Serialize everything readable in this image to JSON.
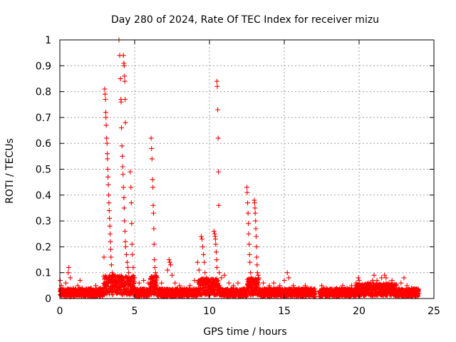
{
  "chart_data": {
    "type": "scatter",
    "title": "Day 280 of 2024, Rate Of TEC Index for receiver mizu",
    "xlabel": "GPS time / hours",
    "ylabel": "ROTI / TECUs",
    "xlim": [
      0,
      25
    ],
    "ylim": [
      0,
      1
    ],
    "x_ticks": [
      0,
      5,
      10,
      15,
      20,
      25
    ],
    "x_tick_labels": [
      "0",
      "5",
      "10",
      "15",
      "20",
      "25"
    ],
    "y_ticks": [
      0,
      0.1,
      0.2,
      0.3,
      0.4,
      0.5,
      0.6,
      0.7,
      0.8,
      0.9,
      1
    ],
    "y_tick_labels": [
      "0",
      "0.1",
      "0.2",
      "0.3",
      "0.4",
      "0.5",
      "0.6",
      "0.7",
      "0.8",
      "0.9",
      "1"
    ],
    "grid": true,
    "marker": "+",
    "color": "#ff0000",
    "series": [
      {
        "name": "ROTI",
        "points": [
          [
            0.02,
            0.07
          ],
          [
            0.1,
            0.05
          ],
          [
            0.25,
            0.03
          ],
          [
            0.4,
            0.06
          ],
          [
            0.55,
            0.1
          ],
          [
            0.6,
            0.12
          ],
          [
            0.7,
            0.08
          ],
          [
            0.9,
            0.04
          ],
          [
            1.2,
            0.05
          ],
          [
            1.35,
            0.07
          ],
          [
            1.5,
            0.04
          ],
          [
            1.8,
            0.03
          ],
          [
            2.1,
            0.04
          ],
          [
            2.4,
            0.05
          ],
          [
            2.7,
            0.04
          ],
          [
            2.95,
            0.16
          ],
          [
            3.0,
            0.81
          ],
          [
            3.02,
            0.79
          ],
          [
            3.05,
            0.77
          ],
          [
            3.07,
            0.72
          ],
          [
            3.08,
            0.7
          ],
          [
            3.1,
            0.67
          ],
          [
            3.12,
            0.62
          ],
          [
            3.15,
            0.6
          ],
          [
            3.17,
            0.56
          ],
          [
            3.18,
            0.54
          ],
          [
            3.2,
            0.5
          ],
          [
            3.22,
            0.47
          ],
          [
            3.24,
            0.44
          ],
          [
            3.26,
            0.4
          ],
          [
            3.28,
            0.37
          ],
          [
            3.3,
            0.34
          ],
          [
            3.32,
            0.31
          ],
          [
            3.34,
            0.28
          ],
          [
            3.36,
            0.25
          ],
          [
            3.38,
            0.22
          ],
          [
            3.4,
            0.19
          ],
          [
            3.42,
            0.16
          ],
          [
            3.45,
            0.13
          ],
          [
            3.5,
            0.1
          ],
          [
            3.55,
            0.09
          ],
          [
            3.7,
            0.07
          ],
          [
            3.95,
            1.0
          ],
          [
            4.0,
            0.94
          ],
          [
            4.05,
            0.85
          ],
          [
            4.08,
            0.77
          ],
          [
            4.1,
            0.76
          ],
          [
            4.12,
            0.66
          ],
          [
            4.15,
            0.59
          ],
          [
            4.18,
            0.55
          ],
          [
            4.2,
            0.51
          ],
          [
            4.22,
            0.48
          ],
          [
            4.25,
            0.43
          ],
          [
            4.28,
            0.39
          ],
          [
            4.3,
            0.35
          ],
          [
            4.32,
            0.3
          ],
          [
            4.35,
            0.26
          ],
          [
            4.38,
            0.22
          ],
          [
            4.25,
            0.94
          ],
          [
            4.28,
            0.91
          ],
          [
            4.3,
            0.9
          ],
          [
            4.32,
            0.86
          ],
          [
            4.34,
            0.84
          ],
          [
            4.36,
            0.77
          ],
          [
            4.38,
            0.68
          ],
          [
            4.4,
            0.2
          ],
          [
            4.45,
            0.17
          ],
          [
            4.5,
            0.14
          ],
          [
            4.55,
            0.12
          ],
          [
            4.6,
            0.1
          ],
          [
            4.7,
            0.49
          ],
          [
            4.75,
            0.43
          ],
          [
            4.78,
            0.37
          ],
          [
            4.8,
            0.29
          ],
          [
            4.82,
            0.21
          ],
          [
            4.85,
            0.17
          ],
          [
            4.9,
            0.12
          ],
          [
            5.0,
            0.08
          ],
          [
            5.3,
            0.06
          ],
          [
            5.6,
            0.07
          ],
          [
            5.9,
            0.06
          ],
          [
            6.1,
            0.62
          ],
          [
            6.13,
            0.58
          ],
          [
            6.16,
            0.54
          ],
          [
            6.2,
            0.46
          ],
          [
            6.22,
            0.43
          ],
          [
            6.24,
            0.36
          ],
          [
            6.26,
            0.33
          ],
          [
            6.28,
            0.27
          ],
          [
            6.3,
            0.21
          ],
          [
            6.32,
            0.15
          ],
          [
            6.35,
            0.12
          ],
          [
            6.4,
            0.1
          ],
          [
            6.5,
            0.08
          ],
          [
            6.8,
            0.06
          ],
          [
            7.2,
            0.11
          ],
          [
            7.3,
            0.15
          ],
          [
            7.35,
            0.14
          ],
          [
            7.4,
            0.13
          ],
          [
            7.5,
            0.09
          ],
          [
            7.7,
            0.06
          ],
          [
            8.0,
            0.05
          ],
          [
            8.3,
            0.04
          ],
          [
            8.7,
            0.05
          ],
          [
            9.0,
            0.07
          ],
          [
            9.2,
            0.14
          ],
          [
            9.3,
            0.11
          ],
          [
            9.45,
            0.24
          ],
          [
            9.5,
            0.23
          ],
          [
            9.55,
            0.2
          ],
          [
            9.6,
            0.17
          ],
          [
            9.65,
            0.14
          ],
          [
            9.7,
            0.1
          ],
          [
            9.8,
            0.08
          ],
          [
            9.9,
            0.06
          ],
          [
            10.3,
            0.26
          ],
          [
            10.35,
            0.25
          ],
          [
            10.38,
            0.24
          ],
          [
            10.4,
            0.23
          ],
          [
            10.42,
            0.21
          ],
          [
            10.45,
            0.18
          ],
          [
            10.48,
            0.15
          ],
          [
            10.5,
            0.12
          ],
          [
            10.5,
            0.84
          ],
          [
            10.52,
            0.82
          ],
          [
            10.55,
            0.73
          ],
          [
            10.58,
            0.62
          ],
          [
            10.6,
            0.49
          ],
          [
            10.62,
            0.36
          ],
          [
            10.65,
            0.1
          ],
          [
            10.8,
            0.08
          ],
          [
            11.0,
            0.09
          ],
          [
            11.3,
            0.06
          ],
          [
            11.6,
            0.05
          ],
          [
            11.9,
            0.06
          ],
          [
            12.5,
            0.43
          ],
          [
            12.52,
            0.41
          ],
          [
            12.55,
            0.37
          ],
          [
            12.58,
            0.33
          ],
          [
            12.6,
            0.29
          ],
          [
            12.62,
            0.25
          ],
          [
            12.65,
            0.21
          ],
          [
            12.68,
            0.17
          ],
          [
            12.7,
            0.14
          ],
          [
            12.75,
            0.1
          ],
          [
            12.8,
            0.08
          ],
          [
            13.0,
            0.38
          ],
          [
            13.02,
            0.37
          ],
          [
            13.04,
            0.35
          ],
          [
            13.06,
            0.33
          ],
          [
            13.08,
            0.3
          ],
          [
            13.1,
            0.27
          ],
          [
            13.12,
            0.24
          ],
          [
            13.14,
            0.2
          ],
          [
            13.16,
            0.16
          ],
          [
            13.18,
            0.13
          ],
          [
            13.2,
            0.1
          ],
          [
            13.25,
            0.09
          ],
          [
            13.3,
            0.08
          ],
          [
            13.6,
            0.06
          ],
          [
            14.0,
            0.05
          ],
          [
            14.3,
            0.06
          ],
          [
            14.7,
            0.05
          ],
          [
            15.0,
            0.07
          ],
          [
            15.2,
            0.1
          ],
          [
            15.3,
            0.08
          ],
          [
            15.6,
            0.05
          ],
          [
            16.0,
            0.04
          ],
          [
            16.4,
            0.05
          ],
          [
            16.8,
            0.04
          ],
          [
            17.0,
            0.03
          ],
          [
            17.5,
            0.05
          ],
          [
            17.8,
            0.04
          ],
          [
            18.1,
            0.03
          ],
          [
            18.5,
            0.04
          ],
          [
            18.9,
            0.05
          ],
          [
            19.2,
            0.04
          ],
          [
            19.5,
            0.05
          ],
          [
            19.8,
            0.06
          ],
          [
            19.95,
            0.08
          ],
          [
            20.0,
            0.07
          ],
          [
            20.3,
            0.05
          ],
          [
            20.6,
            0.06
          ],
          [
            20.9,
            0.07
          ],
          [
            21.0,
            0.09
          ],
          [
            21.2,
            0.07
          ],
          [
            21.5,
            0.08
          ],
          [
            21.7,
            0.09
          ],
          [
            21.8,
            0.08
          ],
          [
            22.0,
            0.06
          ],
          [
            22.2,
            0.07
          ],
          [
            22.5,
            0.05
          ],
          [
            22.8,
            0.06
          ],
          [
            23.0,
            0.08
          ],
          [
            23.2,
            0.05
          ],
          [
            23.5,
            0.04
          ],
          [
            23.8,
            0.03
          ],
          [
            24.0,
            0.02
          ]
        ]
      }
    ]
  }
}
